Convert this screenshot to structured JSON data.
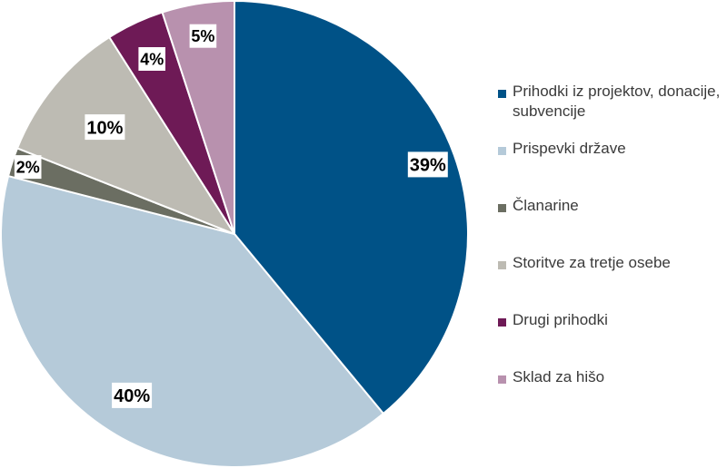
{
  "chart_data": {
    "type": "pie",
    "title": "",
    "unit": "%",
    "slices": [
      {
        "label": "Prihodki iz projektov, donacije, subvencije",
        "value": 39,
        "data_label": "39%",
        "color": "#005287"
      },
      {
        "label": "Prispevki države",
        "value": 40,
        "data_label": "40%",
        "color": "#b5cad9"
      },
      {
        "label": "Članarine",
        "value": 2,
        "data_label": "2%",
        "color": "#6b6e62"
      },
      {
        "label": "Storitve za tretje osebe",
        "value": 10,
        "data_label": "10%",
        "color": "#bdbbb3"
      },
      {
        "label": "Drugi prihodki",
        "value": 4,
        "data_label": "4%",
        "color": "#6e1a56"
      },
      {
        "label": "Sklad za hišo",
        "value": 5,
        "data_label": "5%",
        "color": "#b891ae"
      }
    ],
    "legend_position": "right",
    "start_angle": "top, clockwise"
  }
}
